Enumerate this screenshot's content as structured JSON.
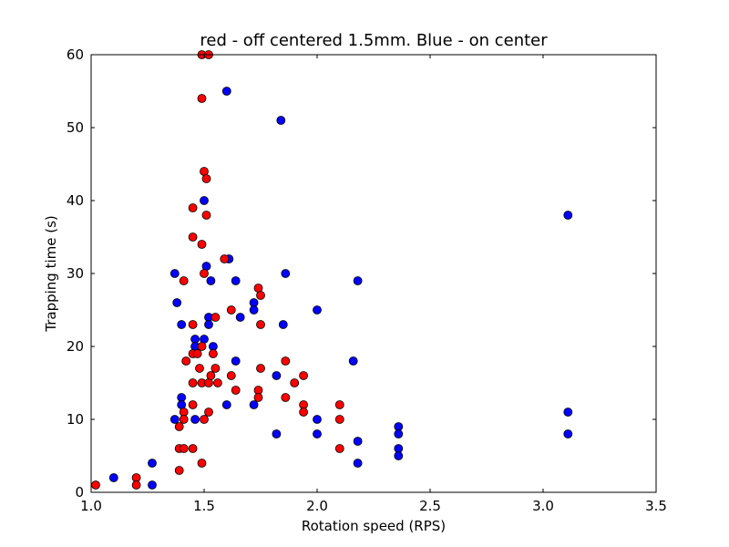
{
  "chart_data": {
    "type": "scatter",
    "title": "red - off centered 1.5mm.  Blue - on center",
    "xlabel": "Rotation speed (RPS)",
    "ylabel": "Trapping time (s)",
    "xlim": [
      1.0,
      3.5
    ],
    "ylim": [
      0,
      60
    ],
    "x_ticks": [
      "1.0",
      "1.5",
      "2.0",
      "2.5",
      "3.0",
      "3.5"
    ],
    "y_ticks": [
      "0",
      "10",
      "20",
      "30",
      "40",
      "50",
      "60"
    ],
    "grid": false,
    "legend": "none",
    "series": [
      {
        "color": "#0000ff",
        "points": [
          [
            1.1,
            2
          ],
          [
            1.27,
            4
          ],
          [
            1.27,
            1
          ],
          [
            1.37,
            30
          ],
          [
            1.37,
            10
          ],
          [
            1.38,
            26
          ],
          [
            1.4,
            23
          ],
          [
            1.4,
            13
          ],
          [
            1.4,
            12
          ],
          [
            1.46,
            21
          ],
          [
            1.46,
            20
          ],
          [
            1.46,
            10
          ],
          [
            1.5,
            40
          ],
          [
            1.5,
            21
          ],
          [
            1.51,
            31
          ],
          [
            1.52,
            24
          ],
          [
            1.52,
            23
          ],
          [
            1.53,
            29
          ],
          [
            1.54,
            20
          ],
          [
            1.6,
            55
          ],
          [
            1.6,
            12
          ],
          [
            1.61,
            32
          ],
          [
            1.64,
            29
          ],
          [
            1.64,
            18
          ],
          [
            1.66,
            24
          ],
          [
            1.72,
            26
          ],
          [
            1.72,
            25
          ],
          [
            1.72,
            12
          ],
          [
            1.82,
            16
          ],
          [
            1.82,
            8
          ],
          [
            1.84,
            51
          ],
          [
            1.85,
            23
          ],
          [
            1.86,
            30
          ],
          [
            2.0,
            25
          ],
          [
            2.0,
            10
          ],
          [
            2.0,
            8
          ],
          [
            2.16,
            18
          ],
          [
            2.18,
            29
          ],
          [
            2.18,
            7
          ],
          [
            2.18,
            4
          ],
          [
            2.36,
            9
          ],
          [
            2.36,
            8
          ],
          [
            2.36,
            6
          ],
          [
            2.36,
            5
          ],
          [
            3.11,
            38
          ],
          [
            3.11,
            11
          ],
          [
            3.11,
            8
          ]
        ]
      },
      {
        "color": "#ff0000",
        "points": [
          [
            1.02,
            1
          ],
          [
            1.2,
            2
          ],
          [
            1.2,
            1
          ],
          [
            1.39,
            9
          ],
          [
            1.39,
            6
          ],
          [
            1.39,
            3
          ],
          [
            1.41,
            29
          ],
          [
            1.41,
            11
          ],
          [
            1.41,
            10
          ],
          [
            1.41,
            6
          ],
          [
            1.42,
            18
          ],
          [
            1.45,
            39
          ],
          [
            1.45,
            35
          ],
          [
            1.45,
            23
          ],
          [
            1.45,
            19
          ],
          [
            1.45,
            15
          ],
          [
            1.45,
            12
          ],
          [
            1.45,
            6
          ],
          [
            1.47,
            19
          ],
          [
            1.48,
            17
          ],
          [
            1.49,
            60
          ],
          [
            1.49,
            54
          ],
          [
            1.49,
            34
          ],
          [
            1.49,
            20
          ],
          [
            1.49,
            15
          ],
          [
            1.49,
            4
          ],
          [
            1.5,
            44
          ],
          [
            1.5,
            30
          ],
          [
            1.5,
            10
          ],
          [
            1.51,
            43
          ],
          [
            1.51,
            38
          ],
          [
            1.52,
            60
          ],
          [
            1.52,
            15
          ],
          [
            1.52,
            11
          ],
          [
            1.53,
            16
          ],
          [
            1.54,
            19
          ],
          [
            1.55,
            24
          ],
          [
            1.55,
            17
          ],
          [
            1.56,
            15
          ],
          [
            1.59,
            32
          ],
          [
            1.62,
            25
          ],
          [
            1.62,
            16
          ],
          [
            1.64,
            14
          ],
          [
            1.74,
            28
          ],
          [
            1.74,
            14
          ],
          [
            1.74,
            13
          ],
          [
            1.75,
            27
          ],
          [
            1.75,
            23
          ],
          [
            1.75,
            17
          ],
          [
            1.86,
            18
          ],
          [
            1.86,
            13
          ],
          [
            1.9,
            15
          ],
          [
            1.94,
            16
          ],
          [
            1.94,
            12
          ],
          [
            1.94,
            11
          ],
          [
            2.1,
            12
          ],
          [
            2.1,
            10
          ],
          [
            2.1,
            6
          ]
        ]
      }
    ]
  }
}
